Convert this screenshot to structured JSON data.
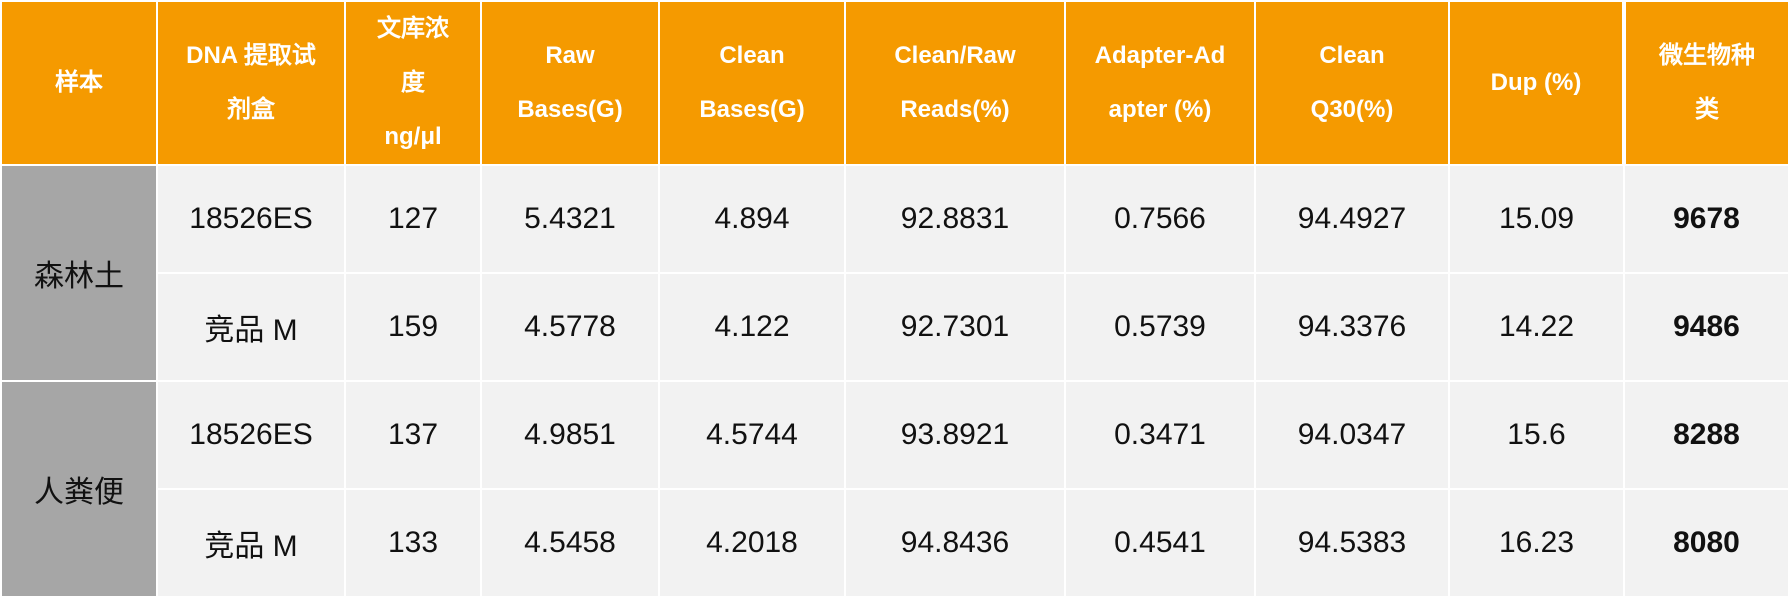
{
  "table": {
    "header": [
      [
        "样本"
      ],
      [
        "DNA 提取试",
        "剂盒"
      ],
      [
        "文库浓",
        "度",
        "ng/μl"
      ],
      [
        "Raw",
        "Bases(G)"
      ],
      [
        "Clean",
        "Bases(G)"
      ],
      [
        "Clean/Raw",
        "Reads(%)"
      ],
      [
        "Adapter-Ad",
        "apter (%)"
      ],
      [
        "Clean",
        "Q30(%)"
      ],
      [
        "Dup (%)"
      ],
      [
        "微生物种",
        "类"
      ]
    ],
    "groups": [
      {
        "name": "森林土",
        "rows": [
          [
            "18526ES",
            "127",
            "5.4321",
            "4.894",
            "92.8831",
            "0.7566",
            "94.4927",
            "15.09",
            "9678"
          ],
          [
            "竞品 M",
            "159",
            "4.5778",
            "4.122",
            "92.7301",
            "0.5739",
            "94.3376",
            "14.22",
            "9486"
          ]
        ]
      },
      {
        "name": "人粪便",
        "rows": [
          [
            "18526ES",
            "137",
            "4.9851",
            "4.5744",
            "93.8921",
            "0.3471",
            "94.0347",
            "15.6",
            "8288"
          ],
          [
            "竞品 M",
            "133",
            "4.5458",
            "4.2018",
            "94.8436",
            "0.4541",
            "94.5383",
            "16.23",
            "8080"
          ]
        ]
      }
    ]
  }
}
